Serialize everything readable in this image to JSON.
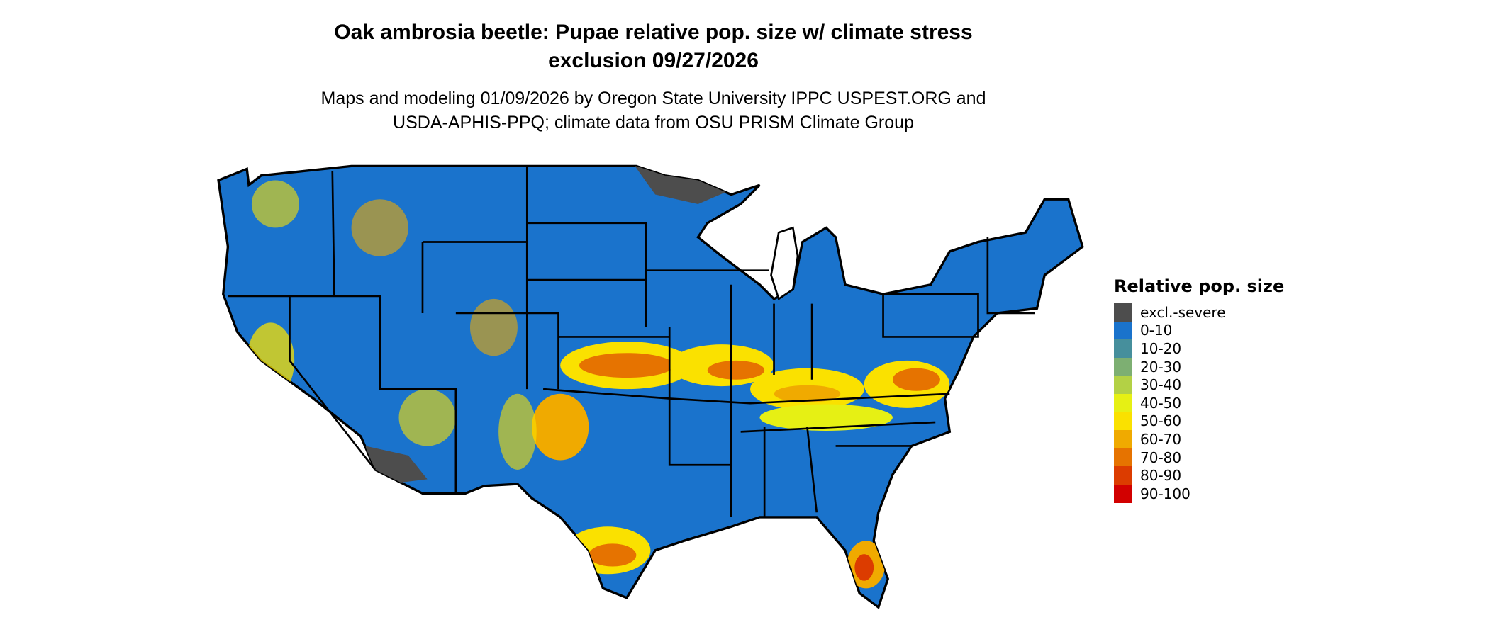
{
  "title": {
    "line1": "Oak ambrosia beetle: Pupae relative pop. size w/ climate stress",
    "line2": "exclusion 09/27/2026"
  },
  "subtitle": {
    "line1": "Maps and modeling 01/09/2026 by Oregon State University IPPC USPEST.ORG and",
    "line2": "USDA-APHIS-PPQ; climate data from OSU PRISM Climate Group"
  },
  "legend": {
    "title": "Relative pop. size",
    "items": [
      {
        "label": "excl.-severe",
        "color": "#4d4d4d"
      },
      {
        "label": "0-10",
        "color": "#1a73cc"
      },
      {
        "label": "10-20",
        "color": "#468f9c"
      },
      {
        "label": "20-30",
        "color": "#7daf72"
      },
      {
        "label": "30-40",
        "color": "#b3d145"
      },
      {
        "label": "40-50",
        "color": "#e6f014"
      },
      {
        "label": "50-60",
        "color": "#fae100"
      },
      {
        "label": "60-70",
        "color": "#f0aa00"
      },
      {
        "label": "70-80",
        "color": "#e67300"
      },
      {
        "label": "80-90",
        "color": "#dc3c00"
      },
      {
        "label": "90-100",
        "color": "#d20000"
      }
    ]
  }
}
